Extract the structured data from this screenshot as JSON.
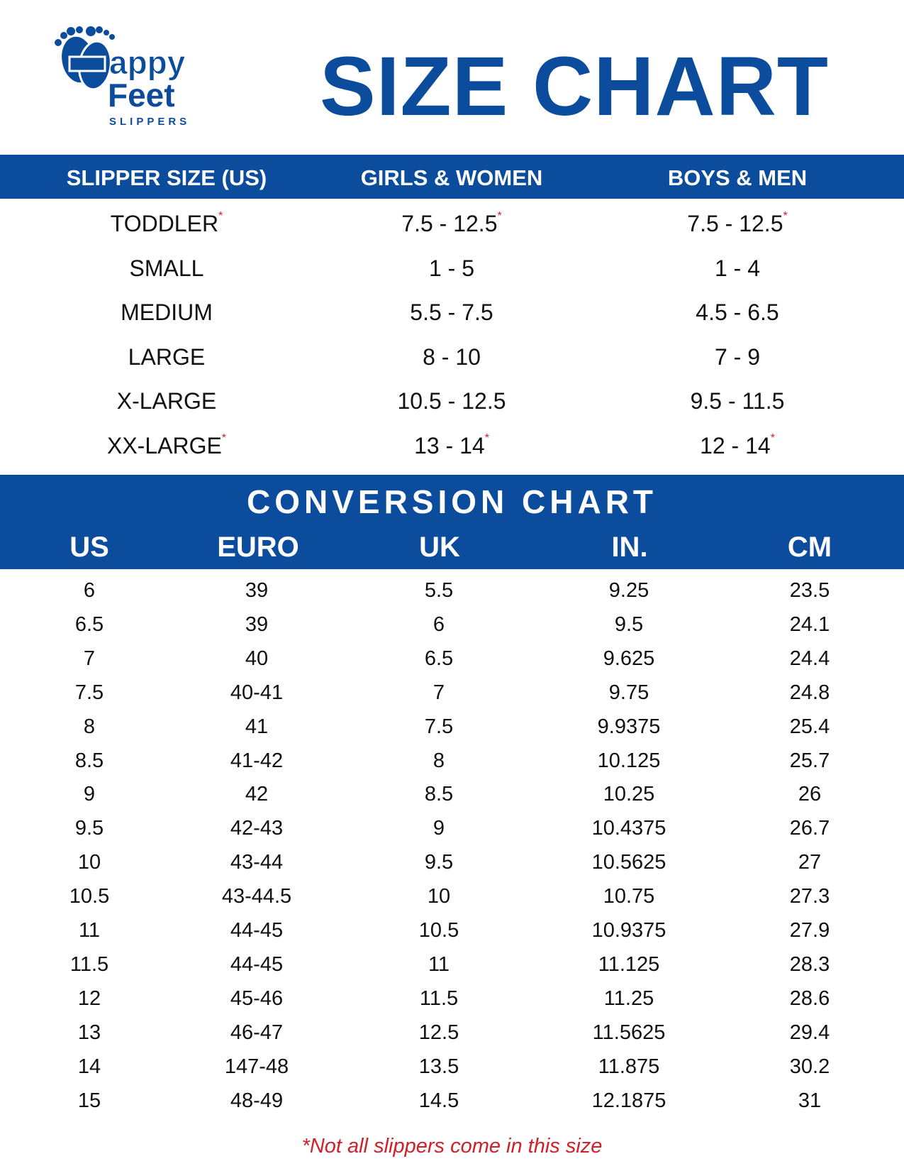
{
  "logo": {
    "line1": "Happy",
    "line2": "Feet",
    "line3": "SLIPPERS",
    "icon": "footprints-icon"
  },
  "title": "SIZE CHART",
  "colors": {
    "brand_blue": "#0b4c9d",
    "note_red": "#d0202a"
  },
  "size_table": {
    "headers": [
      "SLIPPER SIZE (US)",
      "GIRLS & WOMEN",
      "BOYS & MEN"
    ],
    "rows": [
      {
        "size": "TODDLER",
        "women": "7.5 - 12.5",
        "men": "7.5 - 12.5",
        "asterisk": true
      },
      {
        "size": "SMALL",
        "women": "1 - 5",
        "men": "1 - 4",
        "asterisk": false
      },
      {
        "size": "MEDIUM",
        "women": "5.5 - 7.5",
        "men": "4.5 - 6.5",
        "asterisk": false
      },
      {
        "size": "LARGE",
        "women": "8 - 10",
        "men": "7 - 9",
        "asterisk": false
      },
      {
        "size": "X-LARGE",
        "women": "10.5 - 12.5",
        "men": "9.5 - 11.5",
        "asterisk": false
      },
      {
        "size": "XX-LARGE",
        "women": "13 - 14",
        "men": "12 - 14",
        "asterisk": true
      }
    ],
    "asterisk": "*"
  },
  "conversion": {
    "title": "CONVERSION CHART",
    "headers": [
      "US",
      "EURO",
      "UK",
      "IN.",
      "CM"
    ],
    "rows": [
      [
        "6",
        "39",
        "5.5",
        "9.25",
        "23.5"
      ],
      [
        "6.5",
        "39",
        "6",
        "9.5",
        "24.1"
      ],
      [
        "7",
        "40",
        "6.5",
        "9.625",
        "24.4"
      ],
      [
        "7.5",
        "40-41",
        "7",
        "9.75",
        "24.8"
      ],
      [
        "8",
        "41",
        "7.5",
        "9.9375",
        "25.4"
      ],
      [
        "8.5",
        "41-42",
        "8",
        "10.125",
        "25.7"
      ],
      [
        "9",
        "42",
        "8.5",
        "10.25",
        "26"
      ],
      [
        "9.5",
        "42-43",
        "9",
        "10.4375",
        "26.7"
      ],
      [
        "10",
        "43-44",
        "9.5",
        "10.5625",
        "27"
      ],
      [
        "10.5",
        "43-44.5",
        "10",
        "10.75",
        "27.3"
      ],
      [
        "11",
        "44-45",
        "10.5",
        "10.9375",
        "27.9"
      ],
      [
        "11.5",
        "44-45",
        "11",
        "11.125",
        "28.3"
      ],
      [
        "12",
        "45-46",
        "11.5",
        "11.25",
        "28.6"
      ],
      [
        "13",
        "46-47",
        "12.5",
        "11.5625",
        "29.4"
      ],
      [
        "14",
        "147-48",
        "13.5",
        "11.875",
        "30.2"
      ],
      [
        "15",
        "48-49",
        "14.5",
        "12.1875",
        "31"
      ]
    ]
  },
  "footnote": "*Not all slippers come in this size"
}
